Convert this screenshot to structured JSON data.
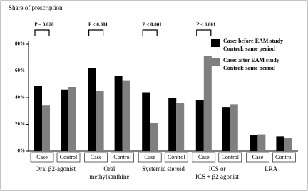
{
  "chart_data": {
    "type": "grouped_bar",
    "y_label": "Share of prescription",
    "groups": [
      [
        "Oral β2-agonist"
      ],
      [
        "Oral",
        "methylxanthine"
      ],
      [
        "Systemic steroid"
      ],
      [
        "ICS or",
        "ICS + β2 agonist"
      ],
      [
        "LRA"
      ]
    ],
    "categories": [
      "Case",
      "Control",
      "Case",
      "Control",
      "Case",
      "Control",
      "Case",
      "Control",
      "Case",
      "Control"
    ],
    "series": [
      {
        "name": "Case: before EAM study",
        "name_line2": "Control: same period",
        "color": "#000000",
        "values": [
          49,
          46,
          62,
          56,
          44,
          40,
          38,
          33,
          12,
          11
        ]
      },
      {
        "name": "Case: after EAM study",
        "name_line2": "Control: same period",
        "color": "#7f7f7f",
        "values": [
          34,
          48,
          45,
          53,
          21,
          36,
          71,
          35,
          12.5,
          10
        ]
      }
    ],
    "annotations": [
      {
        "category": 0,
        "text": "P = 0.020"
      },
      {
        "category": 2,
        "text": "P < 0.001"
      },
      {
        "category": 4,
        "text": "P < 0.001"
      },
      {
        "category": 6,
        "text": "P < 0.001"
      }
    ],
    "ylim": [
      0,
      80
    ],
    "yticks": [
      {
        "value": 0,
        "label": "0%"
      },
      {
        "value": 20,
        "label": "20%"
      },
      {
        "value": 40,
        "label": "40%"
      },
      {
        "value": 60,
        "label": "60%"
      },
      {
        "value": 80,
        "label": "80%"
      }
    ]
  }
}
